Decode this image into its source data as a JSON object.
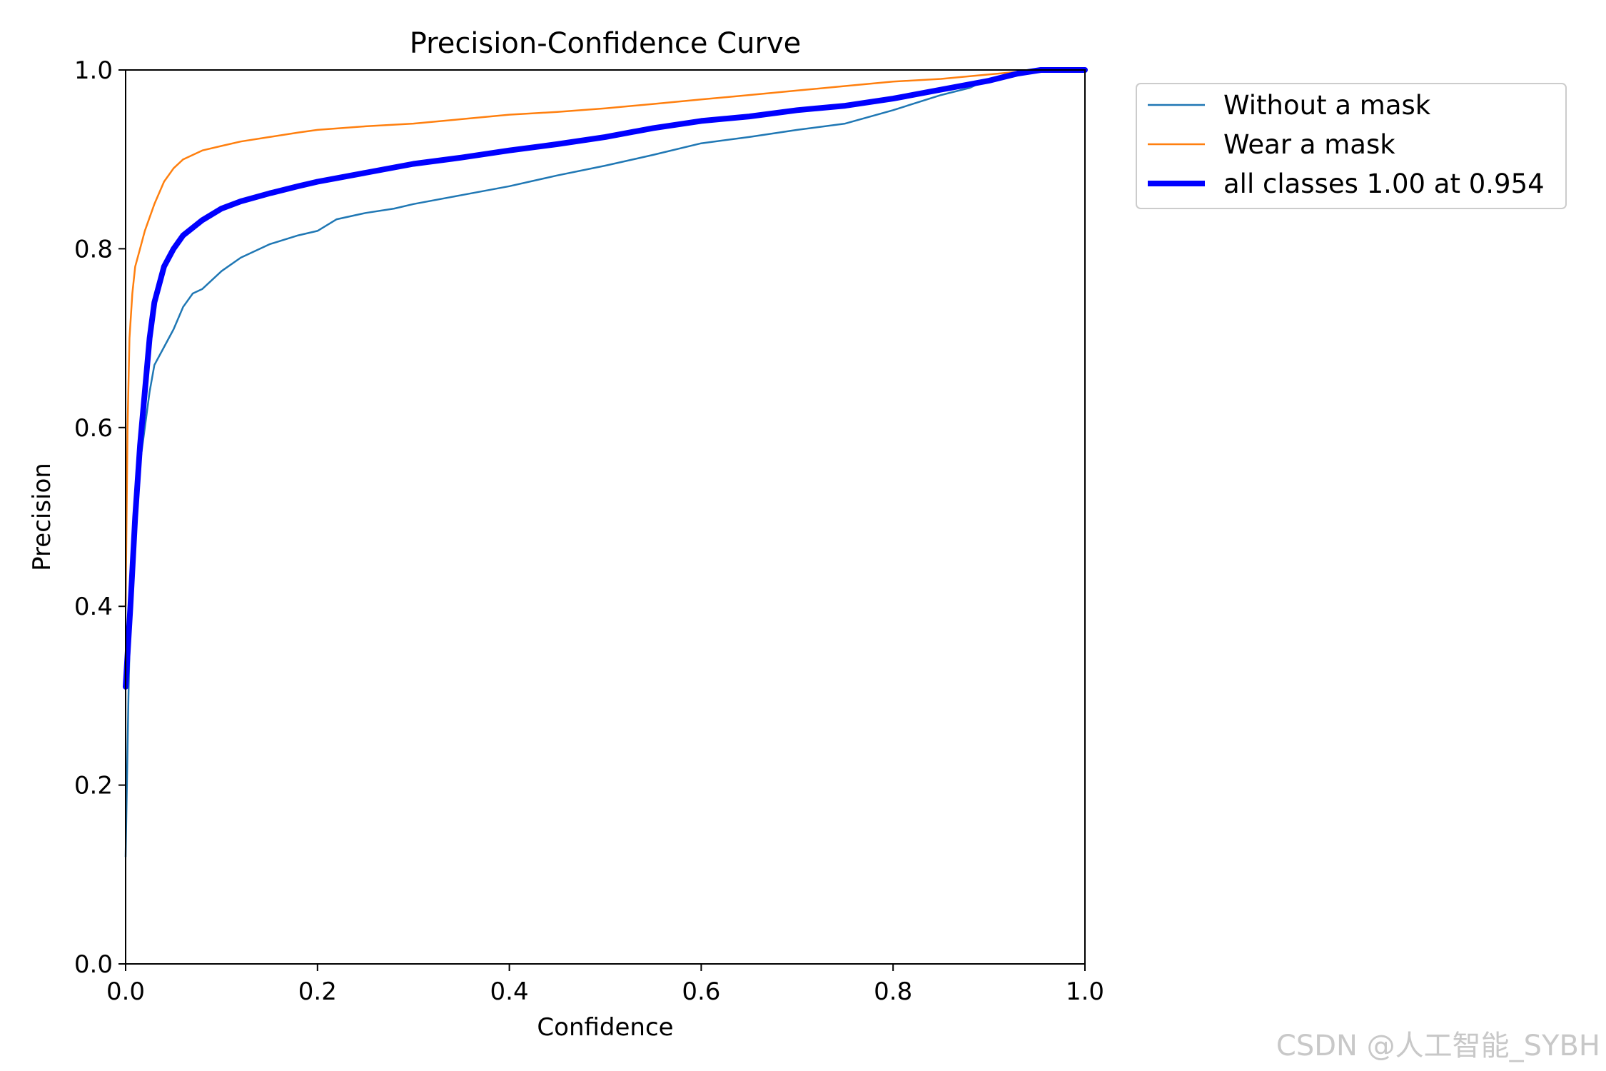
{
  "watermark": "CSDN @人工智能_SYBH",
  "colors": {
    "without_mask": "#1f77b4",
    "wear_mask": "#ff7f0e",
    "all_classes": "#0000ff",
    "axes": "#000000",
    "watermark": "#c8c8c8"
  },
  "chart_data": {
    "type": "line",
    "title": "Precision-Confidence Curve",
    "xlabel": "Confidence",
    "ylabel": "Precision",
    "xlim": [
      0.0,
      1.0
    ],
    "ylim": [
      0.0,
      1.0
    ],
    "xticks": [
      "0.0",
      "0.2",
      "0.4",
      "0.6",
      "0.8",
      "1.0"
    ],
    "yticks": [
      "0.0",
      "0.2",
      "0.4",
      "0.6",
      "0.8",
      "1.0"
    ],
    "grid": false,
    "legend": "outside-top-right",
    "series": [
      {
        "name": "Without a mask",
        "color": "#1f77b4",
        "x": [
          0.0,
          0.003,
          0.006,
          0.01,
          0.015,
          0.02,
          0.025,
          0.03,
          0.04,
          0.05,
          0.06,
          0.07,
          0.08,
          0.1,
          0.12,
          0.15,
          0.18,
          0.2,
          0.22,
          0.25,
          0.28,
          0.3,
          0.35,
          0.4,
          0.45,
          0.5,
          0.55,
          0.6,
          0.65,
          0.7,
          0.75,
          0.8,
          0.85,
          0.88,
          0.9,
          0.92,
          0.95,
          1.0
        ],
        "y": [
          0.12,
          0.3,
          0.45,
          0.52,
          0.56,
          0.6,
          0.64,
          0.67,
          0.69,
          0.71,
          0.735,
          0.75,
          0.755,
          0.775,
          0.79,
          0.805,
          0.815,
          0.82,
          0.833,
          0.84,
          0.845,
          0.85,
          0.86,
          0.87,
          0.882,
          0.893,
          0.905,
          0.918,
          0.925,
          0.933,
          0.94,
          0.955,
          0.972,
          0.98,
          0.99,
          0.995,
          1.0,
          1.0
        ]
      },
      {
        "name": "Wear a mask",
        "color": "#ff7f0e",
        "x": [
          0.0,
          0.002,
          0.004,
          0.007,
          0.01,
          0.015,
          0.02,
          0.03,
          0.04,
          0.05,
          0.06,
          0.08,
          0.1,
          0.12,
          0.15,
          0.18,
          0.2,
          0.25,
          0.3,
          0.35,
          0.4,
          0.45,
          0.5,
          0.55,
          0.6,
          0.65,
          0.7,
          0.75,
          0.8,
          0.85,
          0.9,
          0.93,
          0.95,
          1.0
        ],
        "y": [
          0.4,
          0.6,
          0.7,
          0.75,
          0.78,
          0.8,
          0.82,
          0.85,
          0.875,
          0.89,
          0.9,
          0.91,
          0.915,
          0.92,
          0.925,
          0.93,
          0.933,
          0.937,
          0.94,
          0.945,
          0.95,
          0.953,
          0.957,
          0.962,
          0.967,
          0.972,
          0.977,
          0.982,
          0.987,
          0.99,
          0.995,
          0.998,
          1.0,
          1.0
        ]
      },
      {
        "name": "all classes 1.00 at 0.954",
        "color": "#0000ff",
        "x": [
          0.0,
          0.005,
          0.01,
          0.015,
          0.02,
          0.025,
          0.03,
          0.04,
          0.05,
          0.06,
          0.08,
          0.1,
          0.12,
          0.15,
          0.18,
          0.2,
          0.25,
          0.3,
          0.35,
          0.4,
          0.45,
          0.5,
          0.55,
          0.6,
          0.65,
          0.7,
          0.75,
          0.8,
          0.85,
          0.9,
          0.93,
          0.954,
          1.0
        ],
        "y": [
          0.31,
          0.4,
          0.5,
          0.58,
          0.64,
          0.7,
          0.74,
          0.78,
          0.8,
          0.815,
          0.832,
          0.845,
          0.853,
          0.862,
          0.87,
          0.875,
          0.885,
          0.895,
          0.902,
          0.91,
          0.917,
          0.925,
          0.935,
          0.943,
          0.948,
          0.955,
          0.96,
          0.968,
          0.978,
          0.988,
          0.996,
          1.0,
          1.0
        ]
      }
    ]
  }
}
